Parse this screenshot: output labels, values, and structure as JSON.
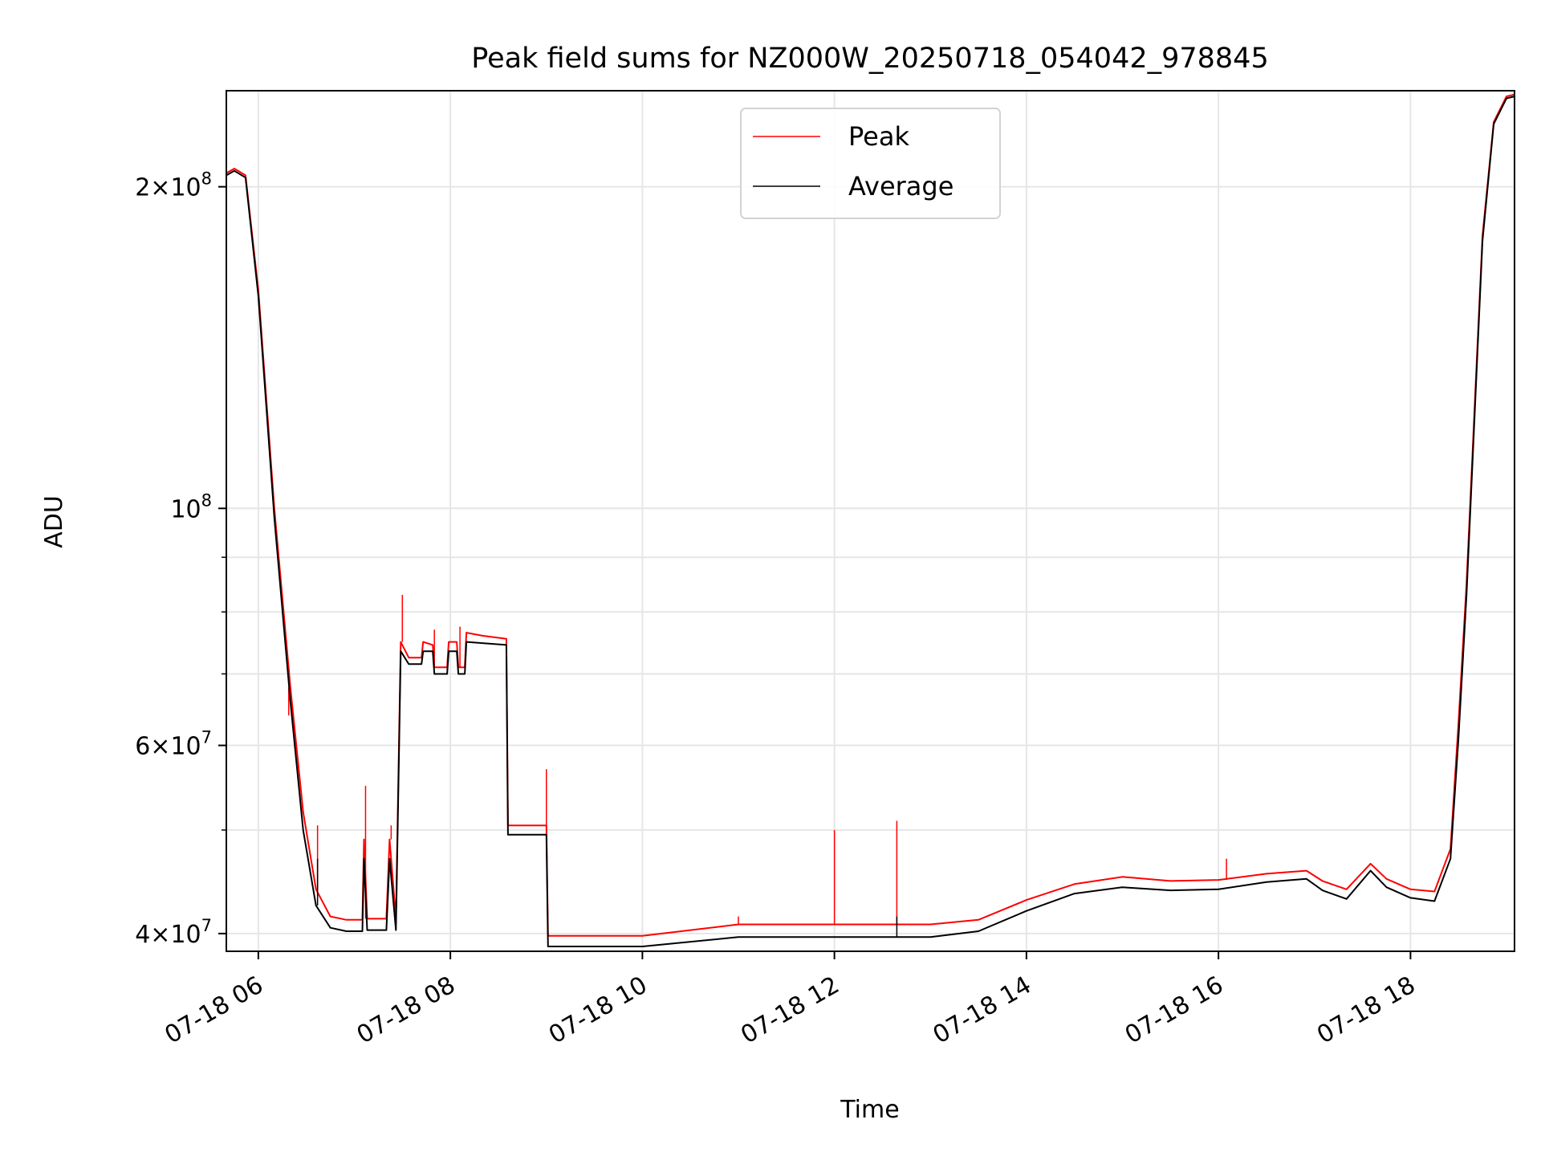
{
  "chart_data": {
    "type": "line",
    "title": "Peak field sums for NZ000W_20250718_054042_978845",
    "xlabel": "Time",
    "ylabel": "ADU",
    "yscale": "log",
    "xlim": [
      "2025-07-18 05:40",
      "2025-07-18 19:05"
    ],
    "ylim": [
      38500000,
      246000000
    ],
    "grid": true,
    "legend": "upper center",
    "x_ticks": [
      "07-18 06",
      "07-18 08",
      "07-18 10",
      "07-18 12",
      "07-18 14",
      "07-18 16",
      "07-18 18"
    ],
    "y_tick_labels": [
      {
        "value": 40000000,
        "base": "4",
        "exp": "7"
      },
      {
        "value": 60000000,
        "base": "6",
        "exp": "7"
      },
      {
        "value": 100000000,
        "base": "",
        "exp": "8"
      },
      {
        "value": 200000000,
        "base": "2",
        "exp": "8"
      }
    ],
    "series": [
      {
        "name": "Peak",
        "color": "#ff0000",
        "points": [
          [
            "2025-07-18 05:40",
            206000000
          ],
          [
            "2025-07-18 05:45",
            208000000
          ],
          [
            "2025-07-18 05:52",
            205000000
          ],
          [
            "2025-07-18 06:00",
            160000000
          ],
          [
            "2025-07-18 06:10",
            100000000
          ],
          [
            "2025-07-18 06:20",
            68000000
          ],
          [
            "2025-07-18 06:28",
            52000000
          ],
          [
            "2025-07-18 06:36",
            44000000
          ],
          [
            "2025-07-18 06:45",
            41500000
          ],
          [
            "2025-07-18 06:55",
            41200000
          ],
          [
            "2025-07-18 07:05",
            41200000
          ],
          [
            "2025-07-18 07:06",
            49000000
          ],
          [
            "2025-07-18 07:08",
            41300000
          ],
          [
            "2025-07-18 07:20",
            41300000
          ],
          [
            "2025-07-18 07:22",
            49000000
          ],
          [
            "2025-07-18 07:26",
            41300000
          ],
          [
            "2025-07-18 07:29",
            75000000
          ],
          [
            "2025-07-18 07:34",
            72500000
          ],
          [
            "2025-07-18 07:42",
            72500000
          ],
          [
            "2025-07-18 07:43",
            75000000
          ],
          [
            "2025-07-18 07:49",
            74500000
          ],
          [
            "2025-07-18 07:50",
            71000000
          ],
          [
            "2025-07-18 07:58",
            71000000
          ],
          [
            "2025-07-18 07:59",
            75000000
          ],
          [
            "2025-07-18 08:04",
            75000000
          ],
          [
            "2025-07-18 08:05",
            71000000
          ],
          [
            "2025-07-18 08:09",
            71000000
          ],
          [
            "2025-07-18 08:10",
            76500000
          ],
          [
            "2025-07-18 08:20",
            76000000
          ],
          [
            "2025-07-18 08:35",
            75500000
          ],
          [
            "2025-07-18 08:36",
            50500000
          ],
          [
            "2025-07-18 09:00",
            50500000
          ],
          [
            "2025-07-18 09:01",
            39800000
          ],
          [
            "2025-07-18 10:00",
            39800000
          ],
          [
            "2025-07-18 11:00",
            40800000
          ],
          [
            "2025-07-18 12:00",
            40800000
          ],
          [
            "2025-07-18 13:00",
            40800000
          ],
          [
            "2025-07-18 13:30",
            41200000
          ],
          [
            "2025-07-18 14:00",
            43000000
          ],
          [
            "2025-07-18 14:30",
            44500000
          ],
          [
            "2025-07-18 15:00",
            45200000
          ],
          [
            "2025-07-18 15:30",
            44800000
          ],
          [
            "2025-07-18 16:00",
            44900000
          ],
          [
            "2025-07-18 16:30",
            45500000
          ],
          [
            "2025-07-18 16:55",
            45800000
          ],
          [
            "2025-07-18 17:05",
            44800000
          ],
          [
            "2025-07-18 17:20",
            44000000
          ],
          [
            "2025-07-18 17:35",
            46500000
          ],
          [
            "2025-07-18 17:45",
            45000000
          ],
          [
            "2025-07-18 18:00",
            44000000
          ],
          [
            "2025-07-18 18:15",
            43800000
          ],
          [
            "2025-07-18 18:25",
            48000000
          ],
          [
            "2025-07-18 18:30",
            63000000
          ],
          [
            "2025-07-18 18:35",
            85000000
          ],
          [
            "2025-07-18 18:45",
            180000000
          ],
          [
            "2025-07-18 18:52",
            230000000
          ],
          [
            "2025-07-18 19:00",
            243000000
          ],
          [
            "2025-07-18 19:05",
            244000000
          ]
        ],
        "spikes": [
          [
            "2025-07-18 06:19",
            64000000
          ],
          [
            "2025-07-18 06:37",
            50500000
          ],
          [
            "2025-07-18 07:07",
            55000000
          ],
          [
            "2025-07-18 07:23",
            50500000
          ],
          [
            "2025-07-18 07:30",
            83000000
          ],
          [
            "2025-07-18 07:50",
            77000000
          ],
          [
            "2025-07-18 08:06",
            77500000
          ],
          [
            "2025-07-18 09:00",
            57000000
          ],
          [
            "2025-07-18 11:00",
            41500000
          ],
          [
            "2025-07-18 12:00",
            50000000
          ],
          [
            "2025-07-18 12:39",
            51000000
          ],
          [
            "2025-07-18 16:05",
            47000000
          ]
        ]
      },
      {
        "name": "Average",
        "color": "#000000",
        "points": [
          [
            "2025-07-18 05:40",
            205000000
          ],
          [
            "2025-07-18 05:45",
            207000000
          ],
          [
            "2025-07-18 05:52",
            204000000
          ],
          [
            "2025-07-18 06:00",
            158000000
          ],
          [
            "2025-07-18 06:10",
            98000000
          ],
          [
            "2025-07-18 06:20",
            66000000
          ],
          [
            "2025-07-18 06:28",
            50000000
          ],
          [
            "2025-07-18 06:36",
            42500000
          ],
          [
            "2025-07-18 06:45",
            40500000
          ],
          [
            "2025-07-18 06:55",
            40200000
          ],
          [
            "2025-07-18 07:05",
            40200000
          ],
          [
            "2025-07-18 07:06",
            47000000
          ],
          [
            "2025-07-18 07:08",
            40300000
          ],
          [
            "2025-07-18 07:20",
            40300000
          ],
          [
            "2025-07-18 07:22",
            47000000
          ],
          [
            "2025-07-18 07:26",
            40300000
          ],
          [
            "2025-07-18 07:29",
            73500000
          ],
          [
            "2025-07-18 07:34",
            71500000
          ],
          [
            "2025-07-18 07:42",
            71500000
          ],
          [
            "2025-07-18 07:43",
            73500000
          ],
          [
            "2025-07-18 07:49",
            73500000
          ],
          [
            "2025-07-18 07:50",
            70000000
          ],
          [
            "2025-07-18 07:58",
            70000000
          ],
          [
            "2025-07-18 07:59",
            73500000
          ],
          [
            "2025-07-18 08:04",
            73500000
          ],
          [
            "2025-07-18 08:05",
            70000000
          ],
          [
            "2025-07-18 08:09",
            70000000
          ],
          [
            "2025-07-18 08:10",
            75000000
          ],
          [
            "2025-07-18 08:20",
            74800000
          ],
          [
            "2025-07-18 08:35",
            74500000
          ],
          [
            "2025-07-18 08:36",
            49500000
          ],
          [
            "2025-07-18 09:00",
            49500000
          ],
          [
            "2025-07-18 09:01",
            38900000
          ],
          [
            "2025-07-18 10:00",
            38900000
          ],
          [
            "2025-07-18 11:00",
            39700000
          ],
          [
            "2025-07-18 12:00",
            39700000
          ],
          [
            "2025-07-18 13:00",
            39700000
          ],
          [
            "2025-07-18 13:30",
            40200000
          ],
          [
            "2025-07-18 14:00",
            42000000
          ],
          [
            "2025-07-18 14:30",
            43600000
          ],
          [
            "2025-07-18 15:00",
            44200000
          ],
          [
            "2025-07-18 15:30",
            43900000
          ],
          [
            "2025-07-18 16:00",
            44000000
          ],
          [
            "2025-07-18 16:30",
            44700000
          ],
          [
            "2025-07-18 16:55",
            45000000
          ],
          [
            "2025-07-18 17:05",
            43900000
          ],
          [
            "2025-07-18 17:20",
            43100000
          ],
          [
            "2025-07-18 17:35",
            45800000
          ],
          [
            "2025-07-18 17:45",
            44200000
          ],
          [
            "2025-07-18 18:00",
            43200000
          ],
          [
            "2025-07-18 18:15",
            42900000
          ],
          [
            "2025-07-18 18:25",
            47000000
          ],
          [
            "2025-07-18 18:30",
            61000000
          ],
          [
            "2025-07-18 18:35",
            83000000
          ],
          [
            "2025-07-18 18:45",
            178000000
          ],
          [
            "2025-07-18 18:52",
            229000000
          ],
          [
            "2025-07-18 19:00",
            242000000
          ],
          [
            "2025-07-18 19:05",
            243000000
          ]
        ],
        "spikes": [
          [
            "2025-07-18 06:37",
            47000000
          ],
          [
            "2025-07-18 12:39",
            41500000
          ]
        ]
      }
    ]
  }
}
